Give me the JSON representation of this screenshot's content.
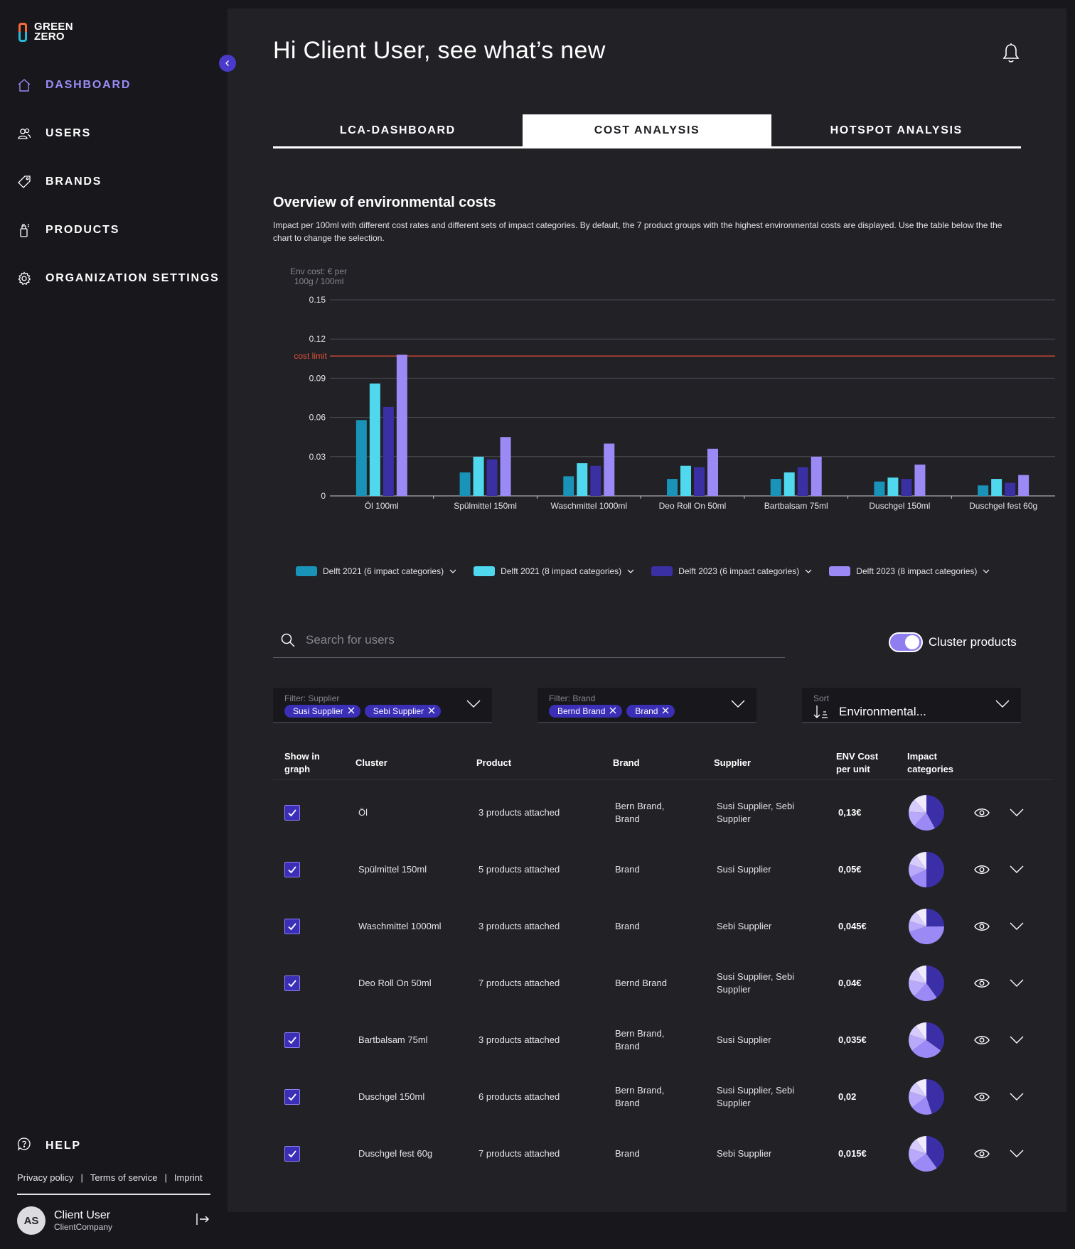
{
  "brand": {
    "line1": "GREEN",
    "line2": "ZERO"
  },
  "nav": [
    {
      "label": "DASHBOARD",
      "icon": "home-icon",
      "active": true
    },
    {
      "label": "USERS",
      "icon": "users-icon"
    },
    {
      "label": "BRANDS",
      "icon": "tag-icon"
    },
    {
      "label": "PRODUCTS",
      "icon": "bottle-icon"
    },
    {
      "label": "ORGANIZATION SETTINGS",
      "icon": "gear-icon"
    }
  ],
  "help": "HELP",
  "legal": {
    "privacy": "Privacy policy",
    "terms": "Terms of service",
    "imprint": "Imprint",
    "sep": "|"
  },
  "user": {
    "initials": "AS",
    "name": "Client User",
    "company": "ClientCompany"
  },
  "greeting": "Hi Client User, see what’s new",
  "tabs": [
    {
      "label": "LCA-DASHBOARD"
    },
    {
      "label": "COST ANALYSIS",
      "active": true
    },
    {
      "label": "HOTSPOT ANALYSIS"
    }
  ],
  "section": {
    "title": "Overview of environmental costs",
    "description": "Impact per 100ml with different cost rates and different sets of impact categories. By default, the 7 product groups with the highest environmental costs are displayed. Use the table below the the chart to change the selection."
  },
  "chart_data": {
    "type": "bar",
    "ylabel_line1": "Env cost: € per",
    "ylabel_line2": "100g / 100ml",
    "ylim": [
      0,
      0.15
    ],
    "yticks": [
      "0",
      "0.03",
      "0.06",
      "0.09",
      "0.12",
      "0.15"
    ],
    "reference_line": {
      "label": "cost limit",
      "value": 0.107,
      "color": "#e0503a"
    },
    "categories": [
      "Öl 100ml",
      "Spülmittel 150ml",
      "Waschmittel 1000ml",
      "Deo Roll On 50ml",
      "Bartbalsam 75ml",
      "Duschgel 150ml",
      "Duschgel fest 60g"
    ],
    "series": [
      {
        "name": "Delft 2021 (6 impact categories)",
        "color": "#1a93b8",
        "values": [
          0.058,
          0.018,
          0.015,
          0.013,
          0.013,
          0.011,
          0.008
        ]
      },
      {
        "name": "Delft 2021 (8 impact categories)",
        "color": "#4fd8ee",
        "values": [
          0.086,
          0.03,
          0.025,
          0.023,
          0.018,
          0.014,
          0.013
        ]
      },
      {
        "name": "Delft 2023 (6 impact categories)",
        "color": "#3a2fa3",
        "values": [
          0.068,
          0.028,
          0.023,
          0.022,
          0.022,
          0.013,
          0.01
        ]
      },
      {
        "name": "Delft 2023 (8 impact categories)",
        "color": "#9b8af6",
        "values": [
          0.108,
          0.045,
          0.04,
          0.036,
          0.03,
          0.024,
          0.016
        ]
      }
    ],
    "grid": true,
    "legend": "bottom"
  },
  "search": {
    "placeholder": "Search for users"
  },
  "cluster_toggle": {
    "label": "Cluster products",
    "on": true
  },
  "filters": {
    "supplier": {
      "label": "Filter: Supplier",
      "chips": [
        "Susi Supplier",
        "Sebi Supplier"
      ]
    },
    "brand": {
      "label": "Filter: Brand",
      "chips": [
        "Bernd Brand",
        "Brand"
      ]
    },
    "sort": {
      "label": "Sort",
      "value": "Environmental..."
    }
  },
  "table": {
    "headers": {
      "show_line1": "Show in",
      "show_line2": "graph",
      "cluster": "Cluster",
      "product": "Product",
      "brand": "Brand",
      "supplier": "Supplier",
      "env_line1": "ENV Cost",
      "env_line2": "per unit",
      "impact_line1": "Impact",
      "impact_line2": "categories"
    },
    "rows": [
      {
        "cluster": "Öl",
        "product": "3 products attached",
        "brand": "Bern Brand, Brand",
        "supplier": "Susi Supplier, Sebi Supplier",
        "cost": "0,13€",
        "pie": [
          0.42,
          0.2,
          0.14,
          0.12,
          0.12
        ]
      },
      {
        "cluster": "Spülmittel 150ml",
        "product": "5 products attached",
        "brand": "Brand",
        "supplier": "Susi Supplier",
        "cost": "0,05€",
        "pie": [
          0.5,
          0.18,
          0.12,
          0.1,
          0.1
        ]
      },
      {
        "cluster": "Waschmittel 1000ml",
        "product": "3 products attached",
        "brand": "Brand",
        "supplier": "Sebi Supplier",
        "cost": "0,045€",
        "pie": [
          0.25,
          0.45,
          0.1,
          0.1,
          0.1
        ]
      },
      {
        "cluster": "Deo Roll On 50ml",
        "product": "7 products attached",
        "brand": "Bernd Brand",
        "supplier": "Susi Supplier, Sebi Supplier",
        "cost": "0,04€",
        "pie": [
          0.4,
          0.22,
          0.16,
          0.12,
          0.1
        ]
      },
      {
        "cluster": "Bartbalsam 75ml",
        "product": "3 products attached",
        "brand": "Bern Brand, Brand",
        "supplier": "Susi Supplier",
        "cost": "0,035€",
        "pie": [
          0.35,
          0.3,
          0.15,
          0.1,
          0.1
        ]
      },
      {
        "cluster": "Duschgel 150ml",
        "product": "6 products attached",
        "brand": "Bern Brand, Brand",
        "supplier": "Susi Supplier, Sebi Supplier",
        "cost": "0,02",
        "pie": [
          0.45,
          0.2,
          0.15,
          0.1,
          0.1
        ]
      },
      {
        "cluster": "Duschgel fest 60g",
        "product": "7 products attached",
        "brand": "Brand",
        "supplier": "Sebi Supplier",
        "cost": "0,015€",
        "pie": [
          0.4,
          0.25,
          0.15,
          0.1,
          0.1
        ]
      }
    ]
  },
  "colors": {
    "accent": "#9b8cf7",
    "chip": "#3b2fb8",
    "panel": "#212126",
    "sidebar": "#17171c"
  }
}
